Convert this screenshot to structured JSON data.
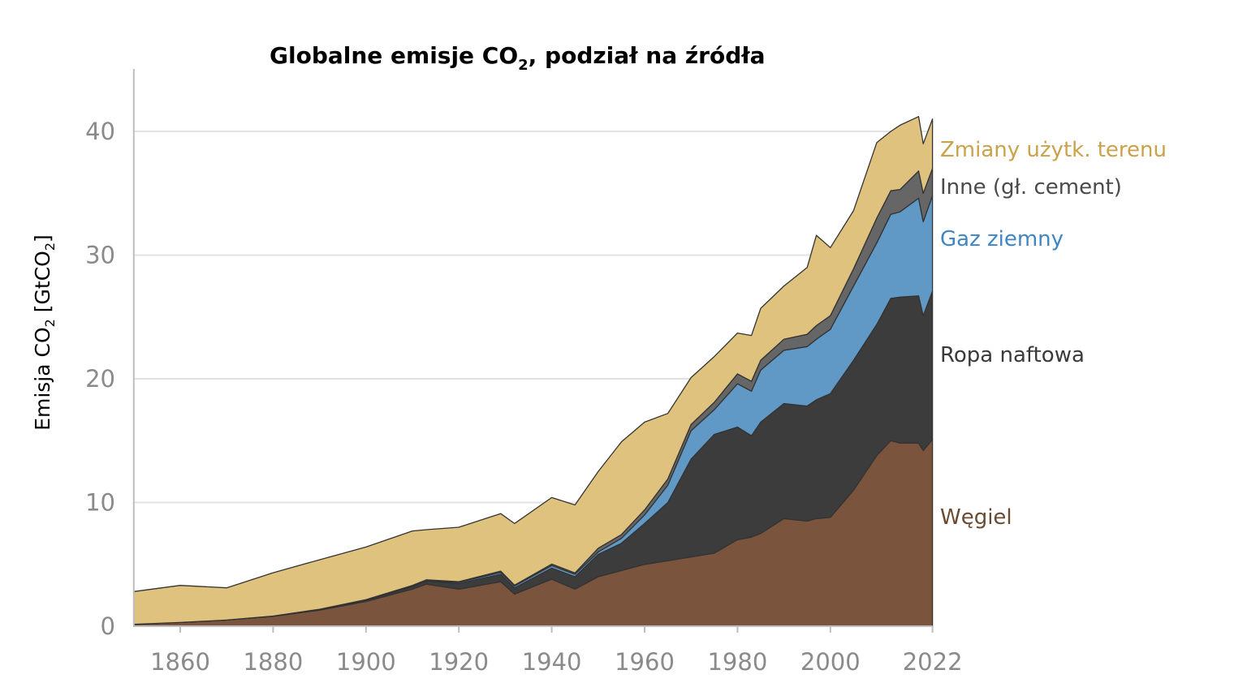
{
  "chart_data": {
    "type": "area",
    "stacked": true,
    "title": {
      "main": "Globalne emisje CO",
      "sub": "2",
      "rest": ", podział na źródła"
    },
    "ylabel": {
      "a": "Emisja CO",
      "a_sub": "2",
      "b": " [GtCO",
      "b_sub": "2",
      "c": "]"
    },
    "xlabel": "",
    "xlim": [
      1850,
      2022
    ],
    "ylim": [
      0,
      45
    ],
    "x_ticks": [
      "1860",
      "1880",
      "1900",
      "1920",
      "1940",
      "1960",
      "1980",
      "2000",
      "2022"
    ],
    "y_ticks": [
      "0",
      "10",
      "20",
      "30",
      "40"
    ],
    "grid": "horizontal",
    "legend": "right, inline labels",
    "x": [
      1850,
      1860,
      1870,
      1880,
      1890,
      1900,
      1910,
      1913,
      1920,
      1929,
      1932,
      1940,
      1945,
      1950,
      1955,
      1960,
      1965,
      1970,
      1975,
      1980,
      1983,
      1985,
      1990,
      1995,
      1997,
      2000,
      2005,
      2010,
      2013,
      2015,
      2019,
      2020,
      2022
    ],
    "series": [
      {
        "name": "Węgiel",
        "color": "#7a543c",
        "label_color": "#6b4a32",
        "values": [
          0.15,
          0.3,
          0.5,
          0.8,
          1.3,
          2.0,
          3.0,
          3.4,
          3.0,
          3.6,
          2.6,
          3.8,
          3.0,
          4.0,
          4.5,
          5.0,
          5.3,
          5.6,
          5.9,
          7.0,
          7.2,
          7.5,
          8.7,
          8.5,
          8.7,
          8.8,
          11.0,
          13.8,
          15.0,
          14.8,
          14.8,
          14.2,
          15.1
        ]
      },
      {
        "name": "Ropa naftowa",
        "color": "#3c3c3c",
        "label_color": "#3a3a3a",
        "values": [
          0,
          0,
          0,
          0.02,
          0.05,
          0.1,
          0.2,
          0.25,
          0.45,
          0.6,
          0.5,
          0.9,
          1.0,
          1.8,
          2.2,
          3.3,
          4.7,
          7.9,
          9.6,
          9.1,
          8.2,
          9.0,
          9.3,
          9.3,
          9.6,
          10.0,
          10.5,
          10.6,
          11.5,
          11.8,
          11.9,
          10.9,
          12.0
        ]
      },
      {
        "name": "Gaz ziemny",
        "color": "#6199c6",
        "label_color": "#3f85c6",
        "values": [
          0,
          0,
          0,
          0,
          0,
          0.02,
          0.05,
          0.05,
          0.1,
          0.15,
          0.15,
          0.2,
          0.2,
          0.2,
          0.4,
          0.7,
          1.4,
          2.3,
          2.0,
          3.5,
          3.6,
          4.2,
          4.3,
          4.8,
          4.9,
          5.2,
          6.0,
          6.6,
          6.8,
          6.9,
          7.9,
          7.6,
          7.7
        ]
      },
      {
        "name": "Inne (gł. cement)",
        "color": "#666666",
        "label_color": "#4a4a4a",
        "values": [
          0,
          0,
          0,
          0,
          0.02,
          0.03,
          0.05,
          0.05,
          0.05,
          0.1,
          0.07,
          0.12,
          0.1,
          0.3,
          0.3,
          0.4,
          0.5,
          0.5,
          0.6,
          0.8,
          0.8,
          0.8,
          0.9,
          1.0,
          1.1,
          1.1,
          1.4,
          2.0,
          1.9,
          1.8,
          2.2,
          2.3,
          2.2
        ]
      },
      {
        "name": "Zmiany użytk. terenu",
        "color": "#dfc27e",
        "label_color": "#c9a24a",
        "values": [
          2.65,
          3.0,
          2.6,
          3.5,
          4.0,
          4.25,
          4.4,
          4.05,
          4.4,
          4.65,
          4.98,
          5.38,
          5.5,
          6.2,
          7.5,
          7.1,
          5.3,
          3.8,
          3.7,
          3.3,
          3.7,
          4.2,
          4.3,
          5.4,
          7.3,
          5.5,
          4.7,
          6.1,
          4.8,
          5.2,
          4.4,
          4.0,
          4.0
        ]
      }
    ]
  }
}
